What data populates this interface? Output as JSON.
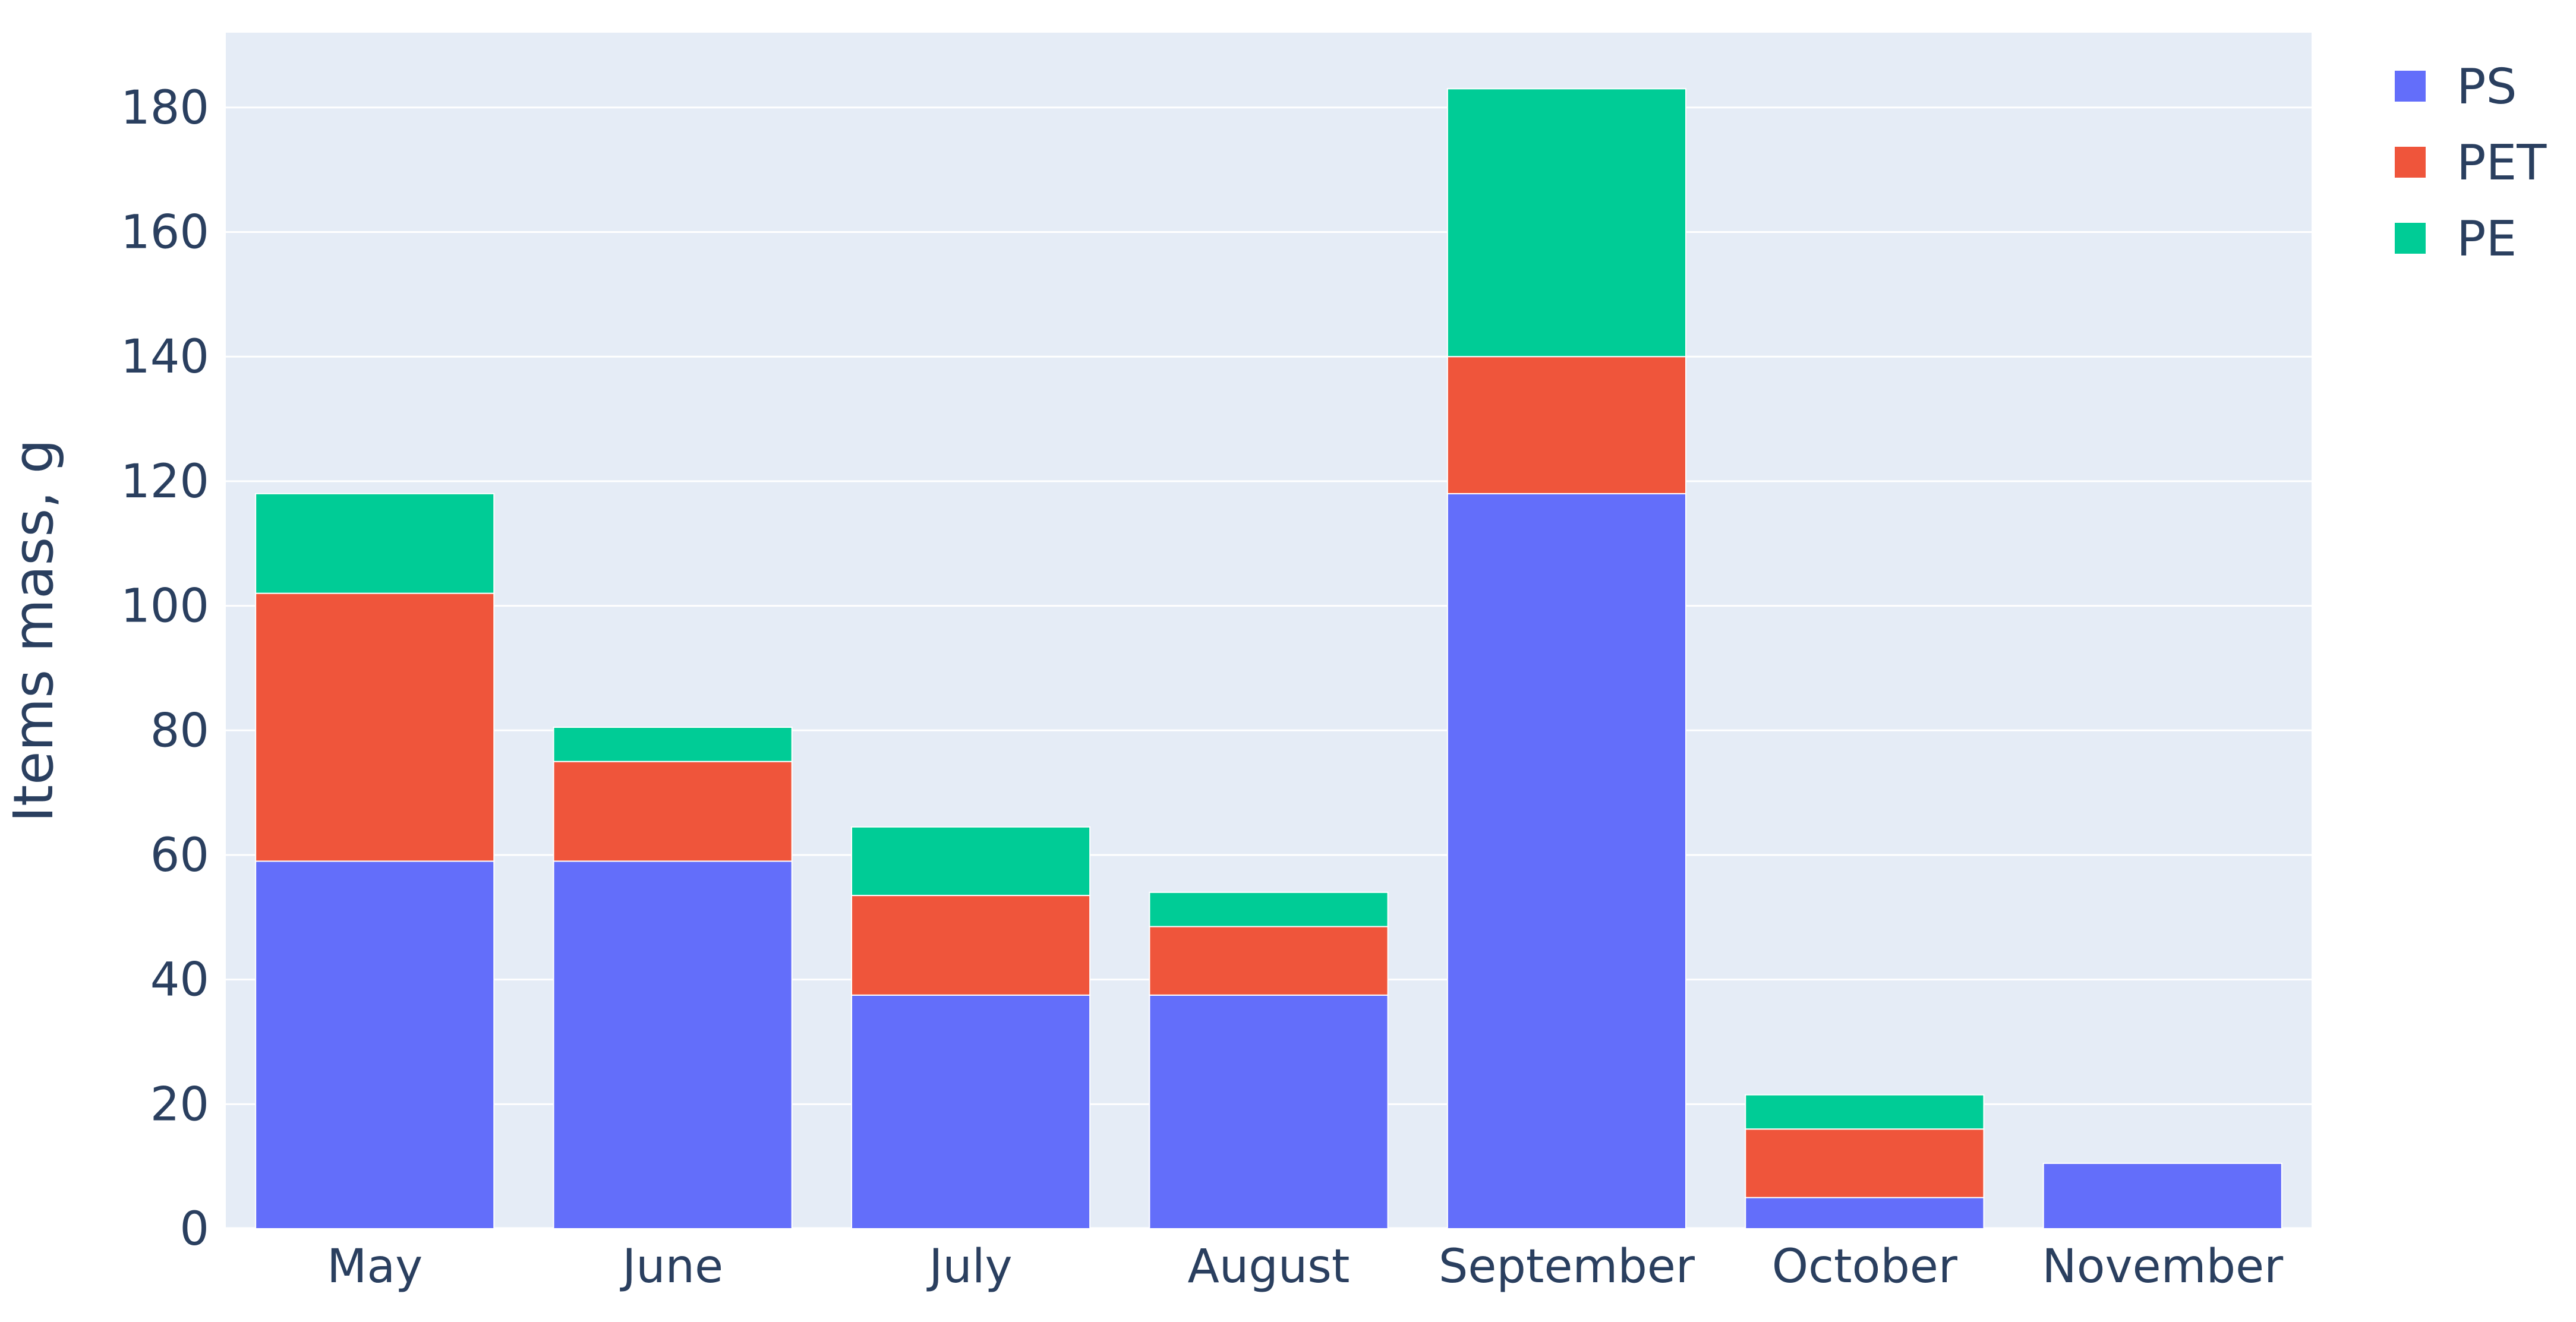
{
  "chart_data": {
    "type": "bar",
    "stacked": true,
    "categories": [
      "May",
      "June",
      "July",
      "August",
      "September",
      "October",
      "November"
    ],
    "series": [
      {
        "name": "PS",
        "color": "#636efa",
        "values": [
          59,
          59,
          37.5,
          37.5,
          118,
          5,
          10.5
        ]
      },
      {
        "name": "PET",
        "color": "#ef553b",
        "values": [
          43,
          16,
          16,
          11,
          22,
          11,
          0
        ]
      },
      {
        "name": "PE",
        "color": "#00cc96",
        "values": [
          16,
          5.5,
          11,
          5.5,
          43,
          5.5,
          0
        ]
      }
    ],
    "title": "",
    "xlabel": "",
    "ylabel": "Items mass, g",
    "ylim": [
      0,
      192
    ],
    "yticks": [
      0,
      20,
      40,
      60,
      80,
      100,
      120,
      140,
      160,
      180
    ],
    "grid": true,
    "legend_position": "top-right",
    "plot_background": "#e5ecf6"
  }
}
